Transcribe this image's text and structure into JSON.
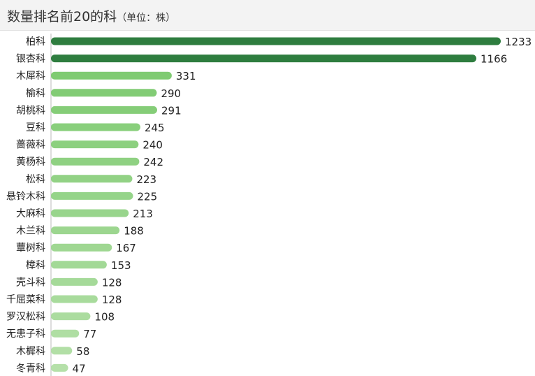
{
  "header": {
    "title": "数量排名前20的科",
    "subtitle": "（单位：株）"
  },
  "chart_data": {
    "type": "bar",
    "orientation": "horizontal",
    "title": "数量排名前20的科",
    "unit": "（单位：株）",
    "categories": [
      "柏科",
      "银杏科",
      "木犀科",
      "榆科",
      "胡桃科",
      "豆科",
      "蔷薇科",
      "黄杨科",
      "松科",
      "悬铃木科",
      "大麻科",
      "木兰科",
      "蕈树科",
      "樟科",
      "壳斗科",
      "千屈菜科",
      "罗汉松科",
      "无患子科",
      "木樨科",
      "冬青科"
    ],
    "values": [
      1233,
      1166,
      331,
      290,
      291,
      245,
      240,
      242,
      223,
      225,
      213,
      188,
      167,
      153,
      128,
      128,
      108,
      77,
      58,
      47
    ],
    "xlim": [
      0,
      1233
    ],
    "grid": false,
    "legend": "none",
    "colors": {
      "dark": "#2e7d3f",
      "light_strong": "#7fcb72",
      "light_soft": "#b5e0a9"
    }
  }
}
